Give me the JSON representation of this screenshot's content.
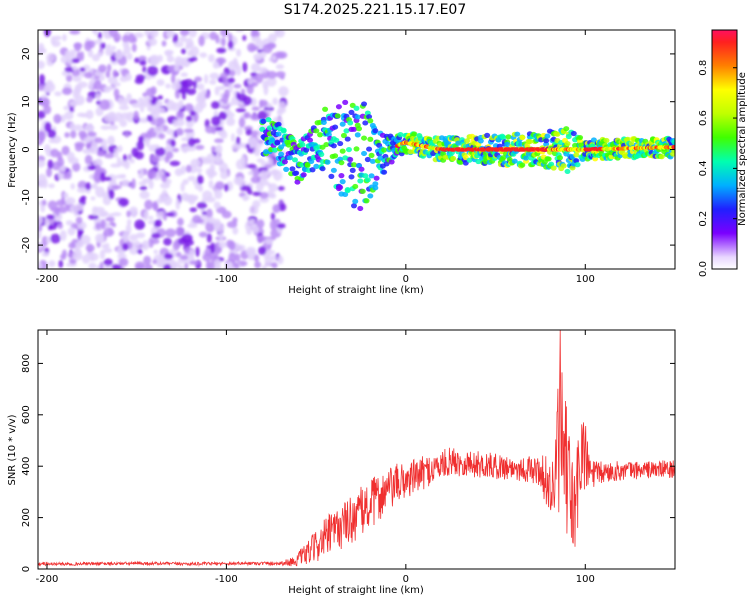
{
  "title": "S174.2025.221.15.17.E07",
  "colors": {
    "snr_line": "#f03030",
    "axis": "#000000",
    "spectrogram_noise": "#7a1ee6"
  },
  "colormap": [
    [
      0.0,
      "#ffffff"
    ],
    [
      0.05,
      "#e8d6ff"
    ],
    [
      0.15,
      "#7a00ff"
    ],
    [
      0.25,
      "#2020ff"
    ],
    [
      0.35,
      "#00b0ff"
    ],
    [
      0.45,
      "#00ffb0"
    ],
    [
      0.55,
      "#40ff00"
    ],
    [
      0.65,
      "#c0ff00"
    ],
    [
      0.75,
      "#ffff00"
    ],
    [
      0.85,
      "#ff8000"
    ],
    [
      0.95,
      "#ff2020"
    ],
    [
      1.0,
      "#ff1060"
    ]
  ],
  "chart_data": [
    {
      "type": "heatmap",
      "name": "spectrogram",
      "xlabel": "Height of straight line (km)",
      "ylabel": "Frequency (Hz)",
      "xlim": [
        -205,
        150
      ],
      "ylim": [
        -25,
        25
      ],
      "xticks": [
        -200,
        -100,
        0,
        100
      ],
      "yticks": [
        -20,
        -10,
        0,
        10,
        20
      ],
      "colorbar": {
        "label": "Normalized spectral amplitude",
        "lim": [
          0,
          0.95
        ],
        "ticks": [
          0.0,
          0.2,
          0.4,
          0.6,
          0.8
        ]
      },
      "features": {
        "noise_region_x": [
          -205,
          -68
        ],
        "frequency_spread_hz": [
          {
            "x": -75,
            "half_width": 4
          },
          {
            "x": -50,
            "half_width": 5
          },
          {
            "x": -35,
            "half_width": 10
          },
          {
            "x": -25,
            "half_width": 12
          },
          {
            "x": -10,
            "half_width": 3
          },
          {
            "x": 0,
            "half_width": 2
          },
          {
            "x": 80,
            "half_width": 4
          },
          {
            "x": 90,
            "half_width": 5
          },
          {
            "x": 100,
            "half_width": 2
          },
          {
            "x": 150,
            "half_width": 2
          }
        ],
        "peak_centerline_hz": [
          {
            "x": -75,
            "y": 3
          },
          {
            "x": -60,
            "y": -3
          },
          {
            "x": -45,
            "y": 2
          },
          {
            "x": -30,
            "y": -1
          },
          {
            "x": -15,
            "y": -1
          },
          {
            "x": 0,
            "y": 1.5
          },
          {
            "x": 20,
            "y": 0
          },
          {
            "x": 100,
            "y": 0
          },
          {
            "x": 150,
            "y": 0.5
          }
        ]
      }
    },
    {
      "type": "line",
      "name": "snr",
      "xlabel": "Height of straight line (km)",
      "ylabel": "SNR (10 * v/v)",
      "xlim": [
        -205,
        150
      ],
      "ylim": [
        0,
        930
      ],
      "xticks": [
        -200,
        -100,
        0,
        100
      ],
      "yticks": [
        0,
        200,
        400,
        600,
        800
      ],
      "series": [
        {
          "name": "SNR",
          "x": [
            -205,
            -180,
            -150,
            -120,
            -90,
            -70,
            -62,
            -55,
            -45,
            -35,
            -25,
            -15,
            -5,
            5,
            15,
            25,
            35,
            50,
            65,
            75,
            82,
            86,
            90,
            94,
            98,
            102,
            106,
            115,
            130,
            150
          ],
          "y": [
            20,
            20,
            22,
            20,
            22,
            22,
            30,
            60,
            120,
            170,
            220,
            280,
            330,
            360,
            390,
            420,
            410,
            400,
            390,
            380,
            300,
            520,
            360,
            200,
            480,
            380,
            370,
            380,
            385,
            390
          ],
          "noise_amplitude": [
            6,
            6,
            6,
            6,
            6,
            8,
            20,
            45,
            80,
            90,
            100,
            95,
            80,
            70,
            60,
            55,
            55,
            50,
            50,
            60,
            150,
            300,
            250,
            220,
            200,
            90,
            50,
            40,
            35,
            35
          ],
          "max_peak": {
            "x": 86,
            "y": 930
          }
        }
      ]
    }
  ]
}
